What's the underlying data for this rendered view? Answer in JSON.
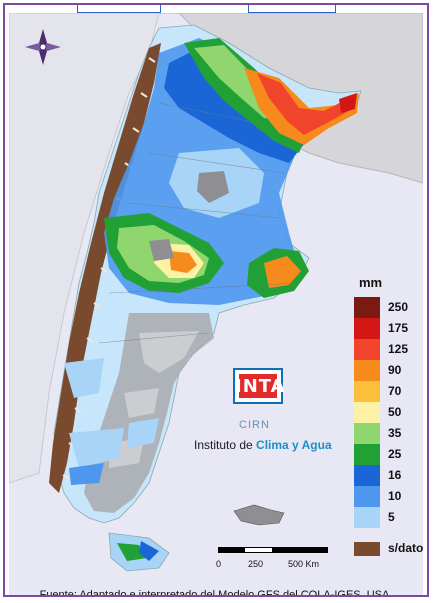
{
  "map": {
    "unit_label": "mm",
    "legend": [
      {
        "label": "250",
        "color": "#7a1a12"
      },
      {
        "label": "175",
        "color": "#d41616"
      },
      {
        "label": "125",
        "color": "#f0452a"
      },
      {
        "label": "90",
        "color": "#f68a1c"
      },
      {
        "label": "70",
        "color": "#fbbf3b"
      },
      {
        "label": "50",
        "color": "#fcf1a4"
      },
      {
        "label": "35",
        "color": "#8fd66e"
      },
      {
        "label": "25",
        "color": "#21a035"
      },
      {
        "label": "16",
        "color": "#1b66d6"
      },
      {
        "label": "10",
        "color": "#4e97ee"
      },
      {
        "label": "5",
        "color": "#a8d4f8"
      }
    ],
    "no_data_label": "s/dato",
    "no_data_color": "#7a4a2e",
    "logo_text": "INTA",
    "cirn_text": "CIRN",
    "institute_prefix": "Instituto de ",
    "institute_highlight": "Clima y Agua",
    "scale_labels": [
      "0",
      "250",
      "500 Km"
    ],
    "source": "Fuente: Adaptado e interpretado del Modelo GFS del COLA-IGES, USA."
  }
}
